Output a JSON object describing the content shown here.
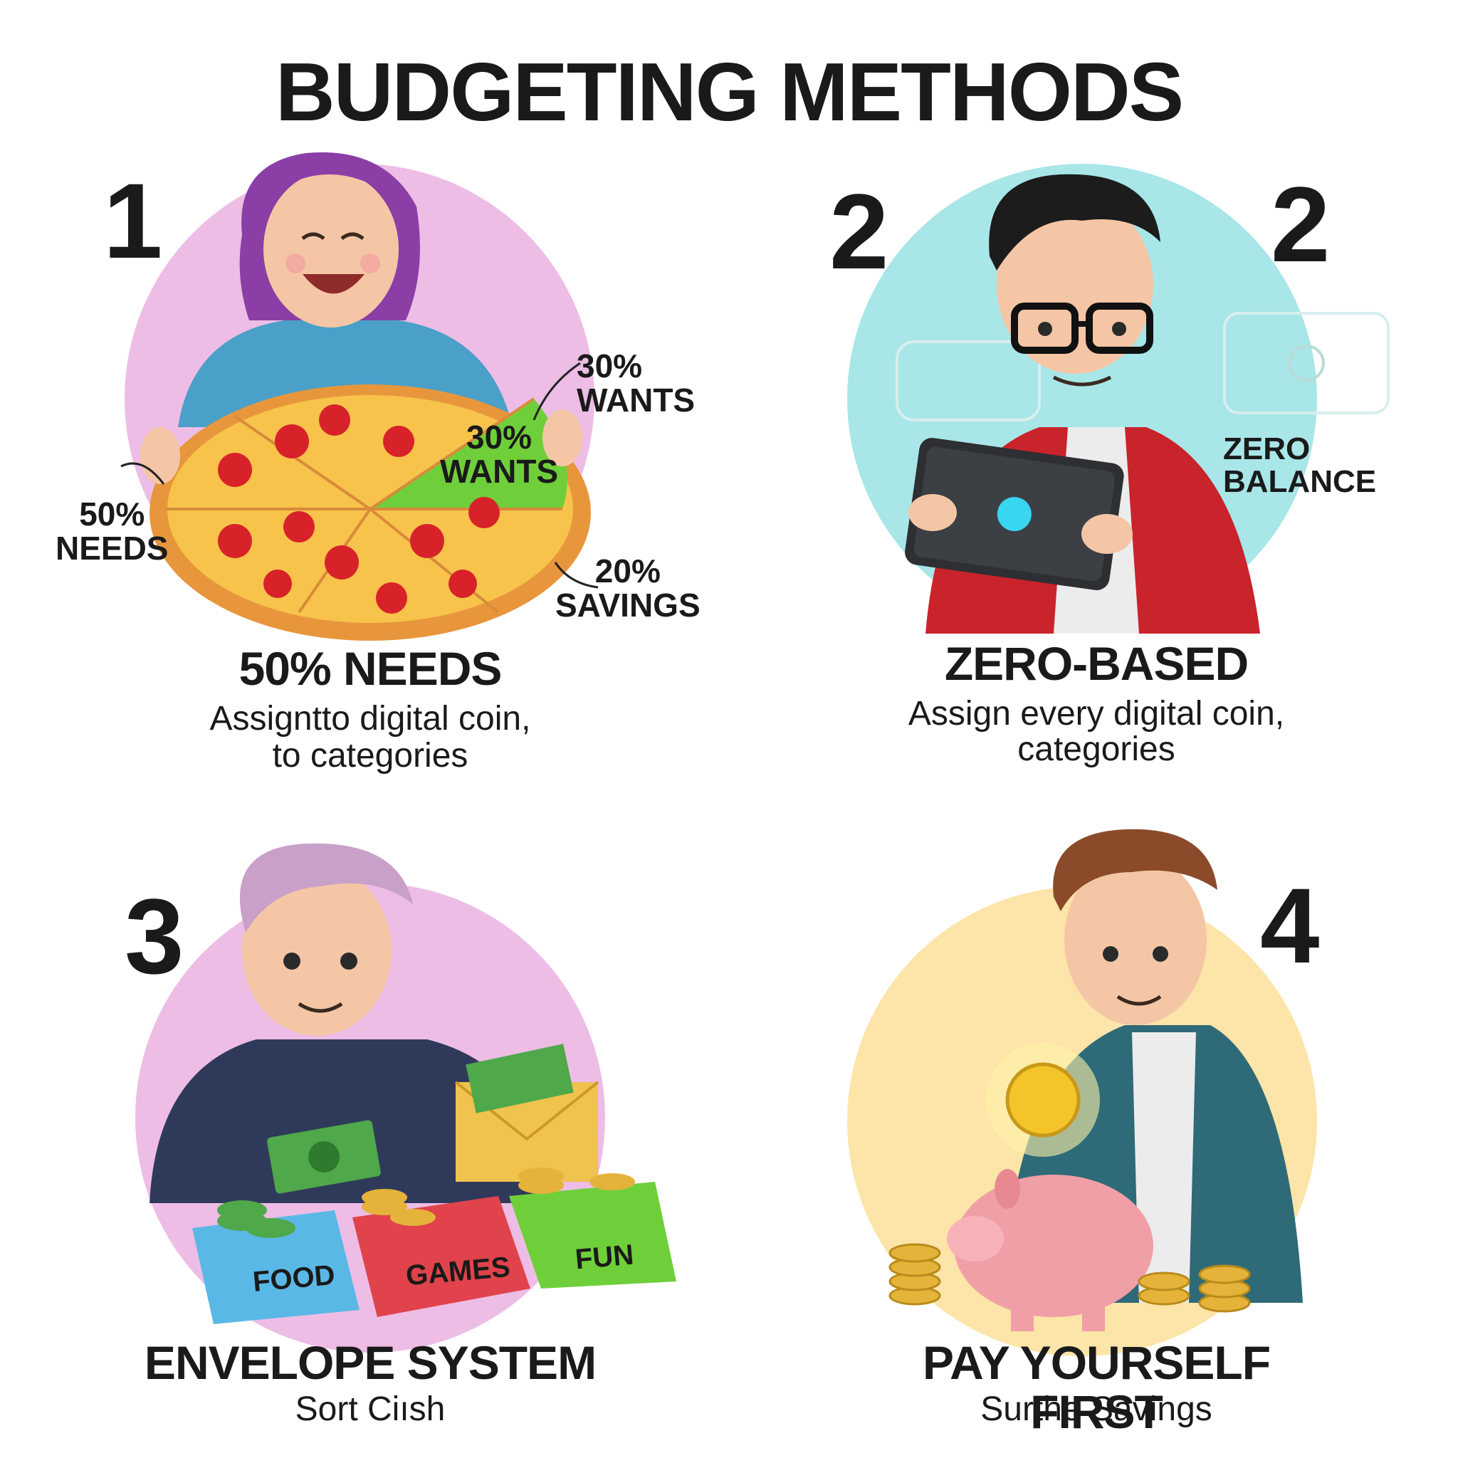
{
  "title": "BUDGETING METHODS",
  "panels": [
    {
      "number": "1",
      "title": "50% NEEDS",
      "subtitle_line1": "Assigntto digital coin,",
      "subtitle_line2": "to categories",
      "labels": {
        "wants_outside": "30%\nWANTS",
        "wants_slice": "30%\nWANTS",
        "needs": "50%\nNEEDS",
        "savings": "20%\nSAVINGS"
      },
      "accent": "#edbde6"
    },
    {
      "number_left": "2",
      "number_right": "2",
      "title": "ZERO-BASED",
      "subtitle_line1": "Assign every digital coin,",
      "subtitle_line2": "categories",
      "balance_label": "ZERO BALANCE",
      "accent": "#a8e6e8"
    },
    {
      "number": "3",
      "title": "ENVELOPE SYSTEM",
      "subtitle": "Sort Ciısh",
      "envelopes": [
        "FOOD",
        "GAMES",
        "FUN"
      ],
      "accent": "#edbde6"
    },
    {
      "number": "4",
      "title": "PAY YOURSELF FIRST",
      "subtitle": "Surthe Savings",
      "accent": "#fbe3a8"
    }
  ]
}
